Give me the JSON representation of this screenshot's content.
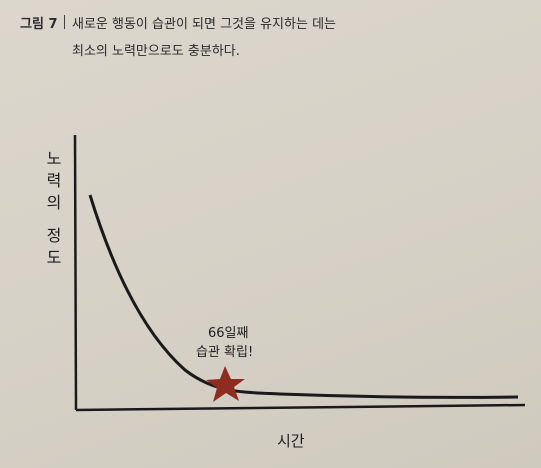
{
  "figure": {
    "label": "그림 7",
    "caption": [
      "새로운 행동이 습관이 되면 그것을 유지하는 데는",
      "최소의 노력만으로도 충분하다."
    ],
    "y_axis_label": "노력의 정도",
    "x_axis_label": "시간",
    "annotation": [
      "66일째",
      "습관 확립!"
    ]
  }
}
